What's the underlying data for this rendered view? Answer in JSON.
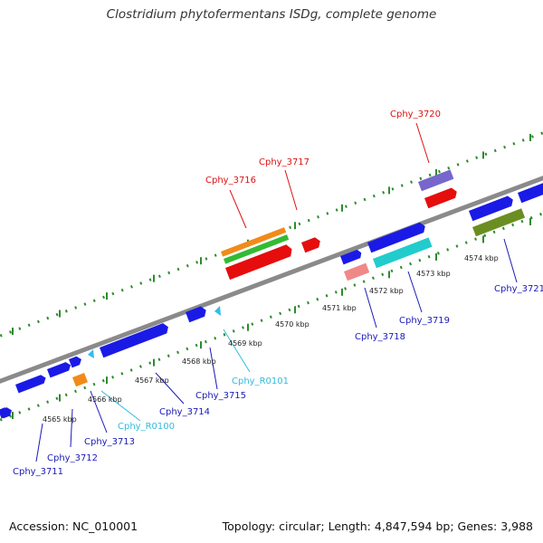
{
  "title": "Clostridium phytofermentans ISDg, complete genome",
  "footer": {
    "accession": "Accession: NC_010001",
    "topology": "Topology: circular; Length: 4,847,594 bp; Genes: 3,988"
  },
  "colors": {
    "backbone": "#8a8a8a",
    "tick": "#2e8b2e",
    "cds_forward": "#1a1ae6",
    "cds_reverse": "#e60d0d",
    "trna": "#33bbee",
    "label_forward": "#1a1ab8",
    "label_reverse": "#dd1111",
    "label_trna": "#33bbdd"
  },
  "kbp_labels": [
    "4565 kbp",
    "4566 kbp",
    "4567 kbp",
    "4568 kbp",
    "4569 kbp",
    "4570 kbp",
    "4571 kbp",
    "4572 kbp",
    "4573 kbp",
    "4574 kbp"
  ],
  "gene_labels": {
    "cphy_3711": "Cphy_3711",
    "cphy_3712": "Cphy_3712",
    "cphy_3713": "Cphy_3713",
    "cphy_r0100": "Cphy_R0100",
    "cphy_3714": "Cphy_3714",
    "cphy_3715": "Cphy_3715",
    "cphy_r0101": "Cphy_R0101",
    "cphy_3716": "Cphy_3716",
    "cphy_3717": "Cphy_3717",
    "cphy_3718": "Cphy_3718",
    "cphy_3719": "Cphy_3719",
    "cphy_3720": "Cphy_3720",
    "cphy_3721": "Cphy_3721"
  }
}
